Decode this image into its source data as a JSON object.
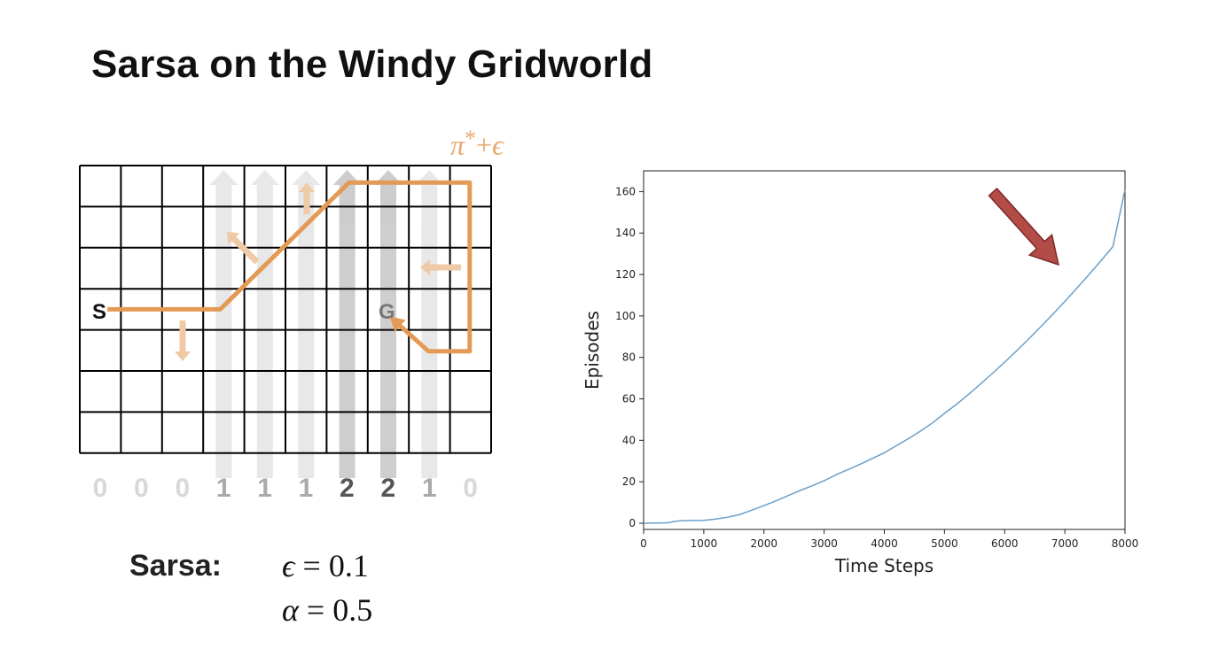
{
  "slide": {
    "title": "Sarsa on the Windy Gridworld"
  },
  "gridworld": {
    "policy_label": {
      "pi": "π",
      "star": "*",
      "plus": "+",
      "eps": "ϵ"
    },
    "start_label": "S",
    "goal_label": "G",
    "wind_strengths": [
      0,
      0,
      0,
      1,
      1,
      1,
      2,
      2,
      1,
      0
    ],
    "colors": {
      "path": "#e39a55",
      "policy_text": "#e8a870",
      "wind_zero": "#d8d8d8",
      "wind_one": "#aaaaaa",
      "wind_two": "#555555"
    }
  },
  "algorithm": {
    "name": "Sarsa:",
    "params": [
      {
        "symbol": "ϵ",
        "equals": "=",
        "value": "0.1"
      },
      {
        "symbol": "α",
        "equals": "=",
        "value": "0.5"
      }
    ]
  },
  "chart_data": {
    "type": "line",
    "title": "",
    "xlabel": "Time Steps",
    "ylabel": "Episodes",
    "xlim": [
      0,
      8000
    ],
    "ylim": [
      -3,
      170
    ],
    "xticks": [
      0,
      1000,
      2000,
      3000,
      4000,
      5000,
      6000,
      7000,
      8000
    ],
    "yticks": [
      0,
      20,
      40,
      60,
      80,
      100,
      120,
      140,
      160
    ],
    "grid": false,
    "series": [
      {
        "color": "#6a9fc9",
        "x": [
          0,
          400,
          500,
          600,
          800,
          1000,
          1200,
          1400,
          1600,
          1800,
          2000,
          2200,
          2400,
          2600,
          2800,
          3000,
          3200,
          3400,
          3600,
          3800,
          4000,
          4200,
          4400,
          4600,
          4800,
          5000,
          5200,
          5400,
          5600,
          5800,
          6000,
          6200,
          6400,
          6600,
          6800,
          7000,
          7200,
          7400,
          7600,
          7800,
          8000
        ],
        "y": [
          0,
          0.2,
          0.8,
          1.2,
          1.3,
          1.4,
          2.0,
          2.9,
          4.2,
          6.3,
          8.5,
          10.8,
          13.3,
          15.8,
          18.0,
          20.5,
          23.4,
          25.9,
          28.5,
          31.2,
          34.0,
          37.4,
          40.8,
          44.4,
          48.4,
          53.0,
          57.4,
          62.2,
          67.2,
          72.4,
          77.7,
          83.2,
          88.9,
          94.8,
          100.8,
          107.0,
          113.4,
          119.9,
          126.6,
          133.5,
          161
        ]
      }
    ],
    "annotation": {
      "type": "arrow",
      "color": "#b34c47"
    }
  }
}
